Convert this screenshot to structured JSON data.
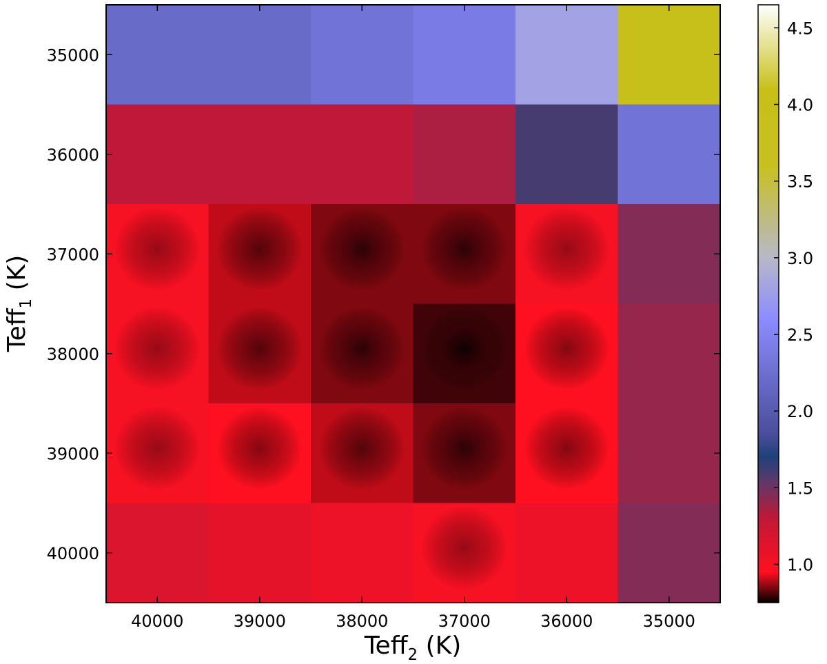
{
  "chart_data": {
    "type": "heatmap",
    "title": "",
    "xlabel": {
      "main": "Teff",
      "sub": "2",
      "unit": " (K)"
    },
    "ylabel": {
      "main": "Teff",
      "sub": "1",
      "unit": " (K)"
    },
    "x_categories": [
      40000,
      39000,
      38000,
      37000,
      36000,
      35000
    ],
    "y_categories": [
      35000,
      36000,
      37000,
      38000,
      39000,
      40000
    ],
    "x_tick_labels": [
      "40000",
      "39000",
      "38000",
      "37000",
      "36000",
      "35000"
    ],
    "y_tick_labels": [
      "35000",
      "36000",
      "37000",
      "38000",
      "39000",
      "40000"
    ],
    "cell_value_estimates": [
      [
        2.2,
        2.2,
        2.3,
        2.4,
        2.8,
        4.0
      ],
      [
        1.3,
        1.3,
        1.3,
        1.35,
        1.6,
        2.3
      ],
      [
        1.0,
        0.9,
        0.85,
        0.85,
        1.0,
        1.45
      ],
      [
        1.0,
        0.9,
        0.85,
        0.8,
        0.95,
        1.4
      ],
      [
        1.0,
        0.95,
        0.9,
        0.85,
        0.95,
        1.4
      ],
      [
        1.15,
        1.1,
        1.05,
        1.0,
        1.05,
        1.45
      ]
    ],
    "min_value": 0.75,
    "colorbar": {
      "range": [
        0.75,
        4.65
      ],
      "ticks": [
        1.0,
        1.5,
        2.0,
        2.5,
        3.0,
        3.5,
        4.0,
        4.5
      ],
      "tick_labels": [
        "1.0",
        "1.5",
        "2.0",
        "2.5",
        "3.0",
        "3.5",
        "4.0",
        "4.5"
      ],
      "stops": [
        {
          "value": 0.75,
          "color": "#000000"
        },
        {
          "value": 0.95,
          "color": "#ff1020"
        },
        {
          "value": 1.3,
          "color": "#c01838"
        },
        {
          "value": 1.55,
          "color": "#5a3a6a"
        },
        {
          "value": 1.7,
          "color": "#20407a"
        },
        {
          "value": 1.85,
          "color": "#4a4e9a"
        },
        {
          "value": 2.6,
          "color": "#8c8cff"
        },
        {
          "value": 3.0,
          "color": "#b8b8c8"
        },
        {
          "value": 3.6,
          "color": "#c8c020"
        },
        {
          "value": 4.1,
          "color": "#c8c018"
        },
        {
          "value": 4.65,
          "color": "#ffffff"
        }
      ]
    }
  }
}
